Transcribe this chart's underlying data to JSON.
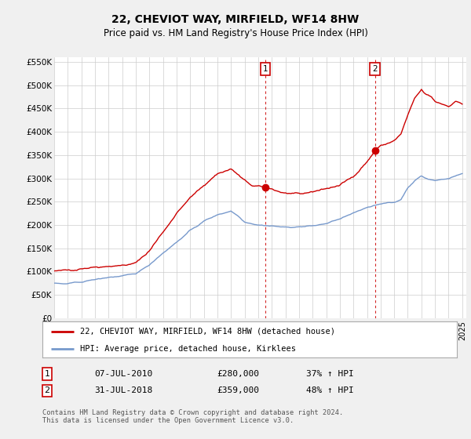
{
  "title": "22, CHEVIOT WAY, MIRFIELD, WF14 8HW",
  "subtitle": "Price paid vs. HM Land Registry's House Price Index (HPI)",
  "title_fontsize": 10,
  "subtitle_fontsize": 8.5,
  "ylabel_ticks": [
    "£0",
    "£50K",
    "£100K",
    "£150K",
    "£200K",
    "£250K",
    "£300K",
    "£350K",
    "£400K",
    "£450K",
    "£500K",
    "£550K"
  ],
  "ytick_values": [
    0,
    50000,
    100000,
    150000,
    200000,
    250000,
    300000,
    350000,
    400000,
    450000,
    500000,
    550000
  ],
  "ylim": [
    0,
    560000
  ],
  "xlim_start": 1995.0,
  "xlim_end": 2025.3,
  "purchase1": {
    "year": 2010.52,
    "price": 280000,
    "label": "1",
    "date": "07-JUL-2010",
    "price_str": "£280,000",
    "hpi_pct": "37% ↑ HPI"
  },
  "purchase2": {
    "year": 2018.58,
    "price": 359000,
    "label": "2",
    "date": "31-JUL-2018",
    "price_str": "£359,000",
    "hpi_pct": "48% ↑ HPI"
  },
  "legend_line1": "22, CHEVIOT WAY, MIRFIELD, WF14 8HW (detached house)",
  "legend_line2": "HPI: Average price, detached house, Kirklees",
  "footnote": "Contains HM Land Registry data © Crown copyright and database right 2024.\nThis data is licensed under the Open Government Licence v3.0.",
  "outer_bg": "#f0f0f0",
  "plot_bg": "#ffffff",
  "grid_color": "#cccccc",
  "red_color": "#cc0000",
  "blue_color": "#7799cc",
  "vline_color": "#cc0000"
}
